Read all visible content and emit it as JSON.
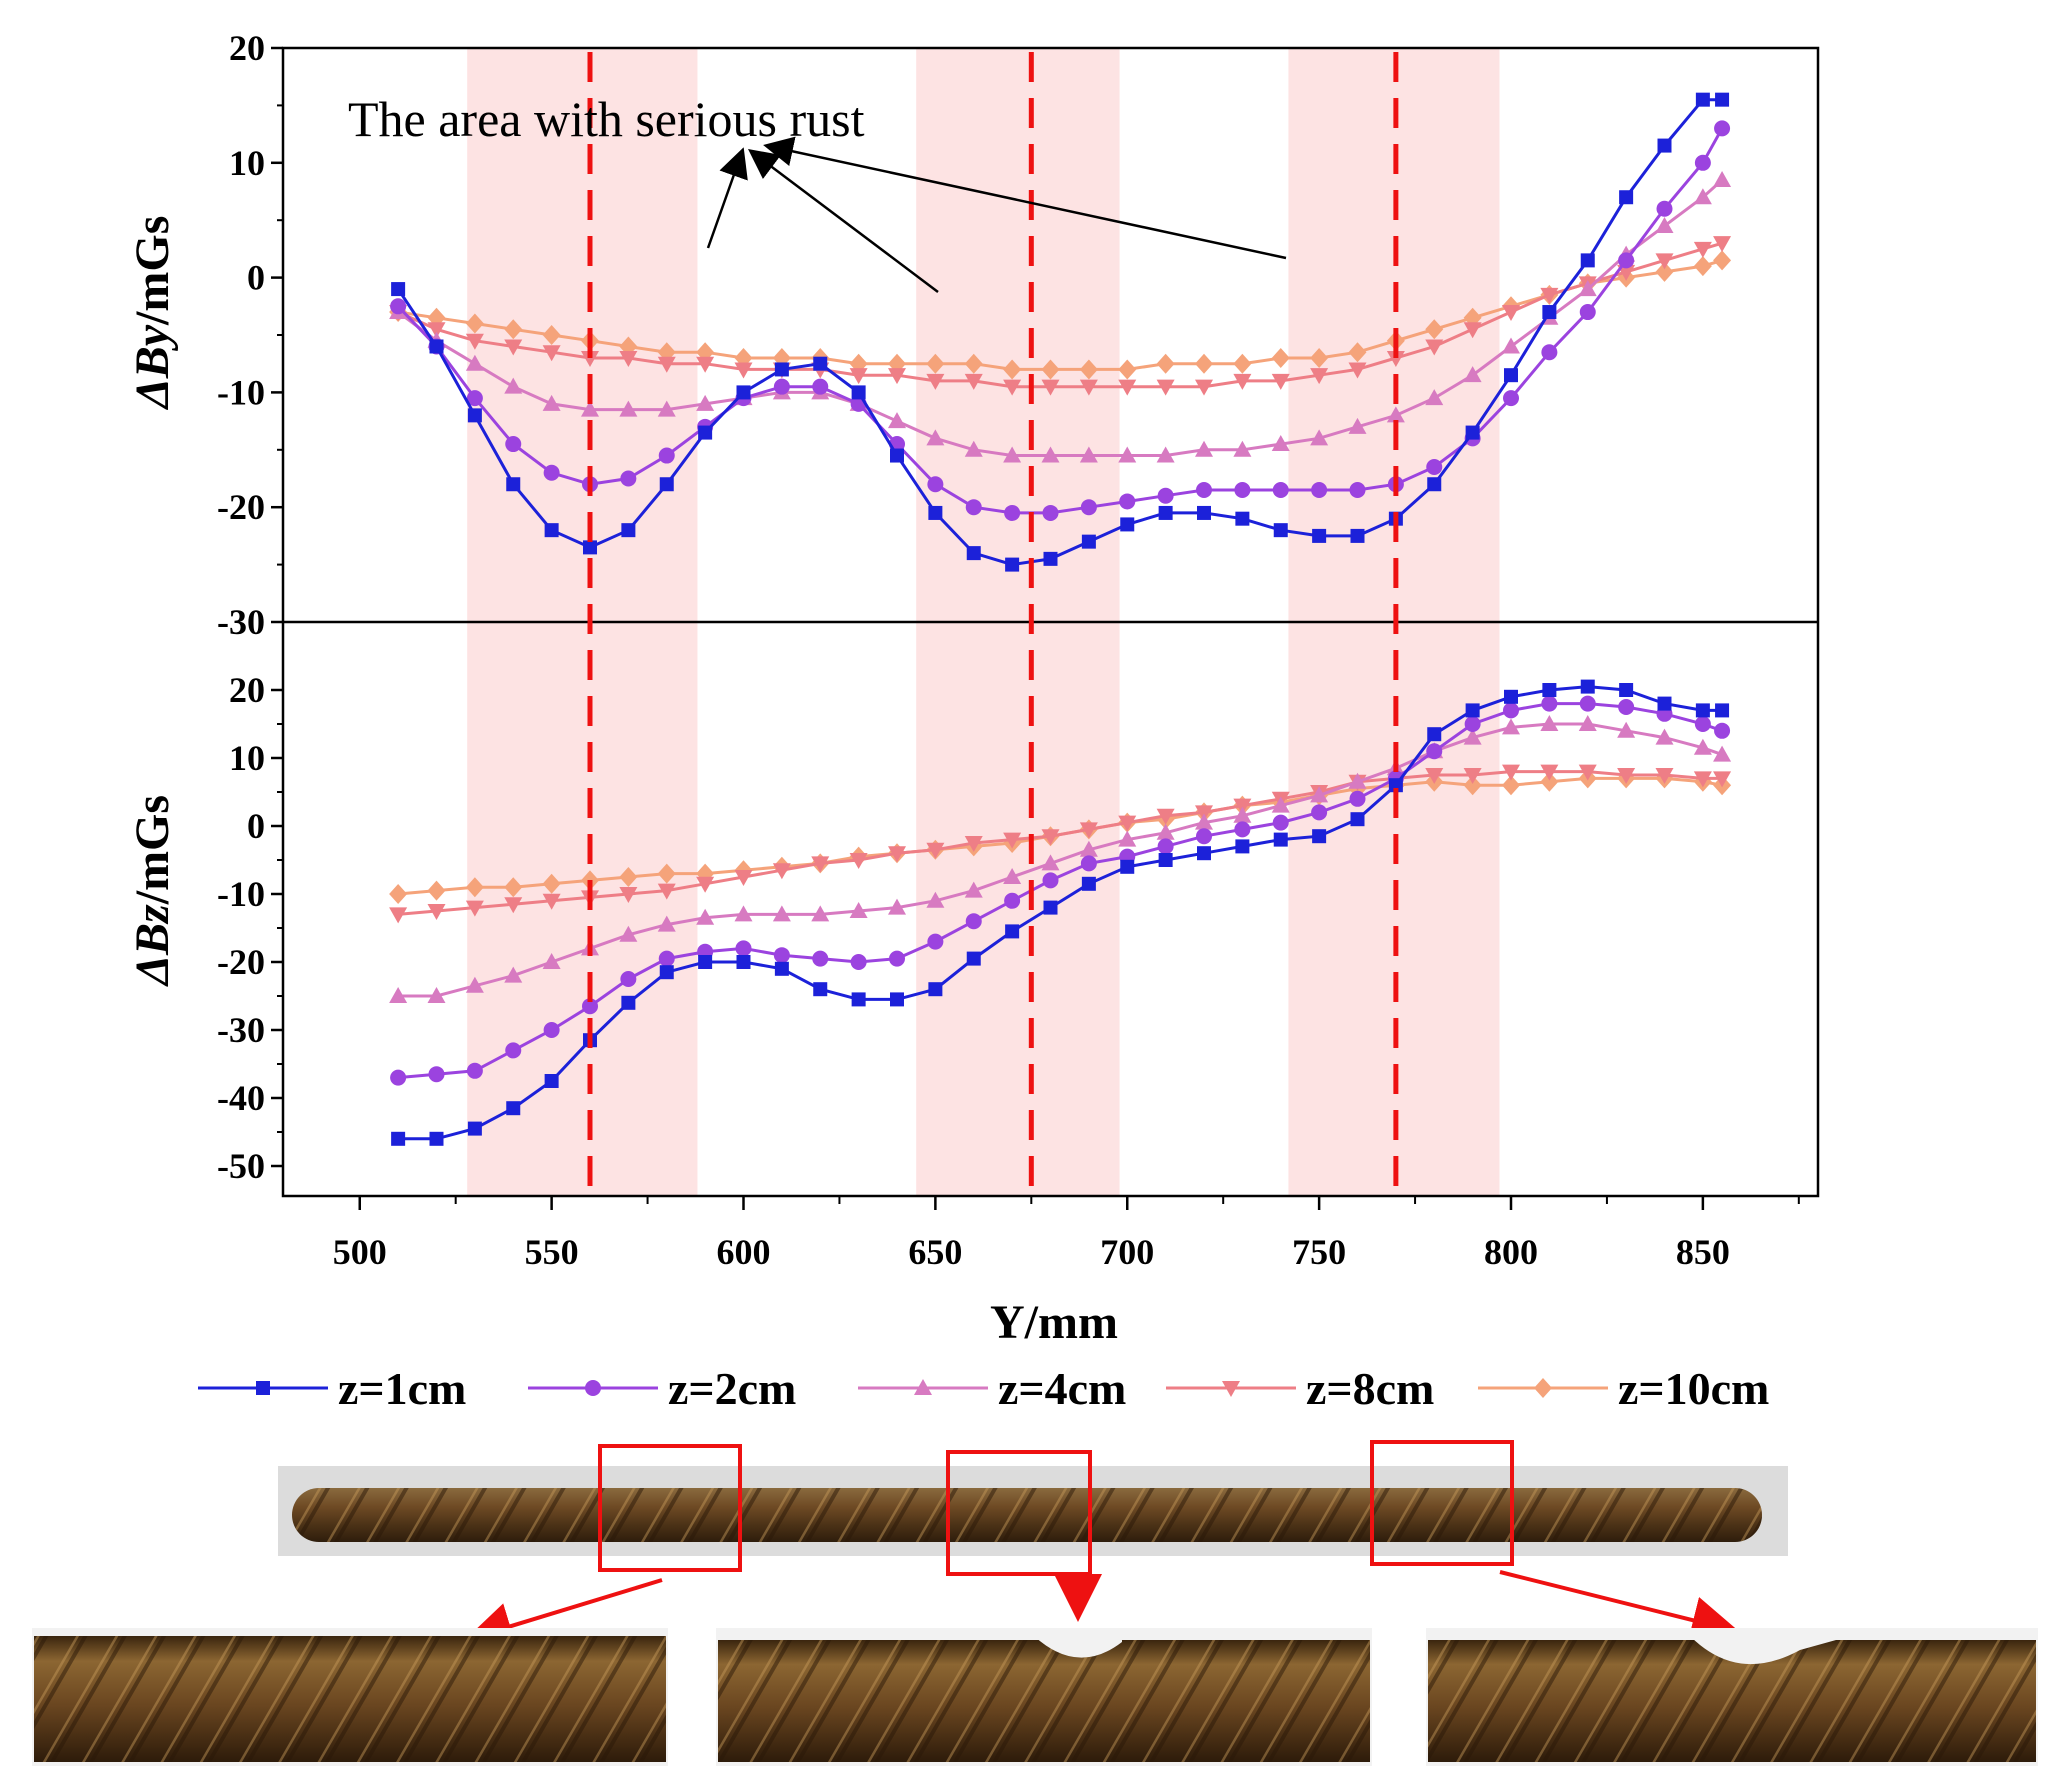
{
  "chart_data": {
    "type": "line",
    "annotation": "The area with serious rust",
    "xlabel": "Y/mm",
    "x_ticks": [
      "500",
      "550",
      "600",
      "650",
      "700",
      "750",
      "800",
      "850"
    ],
    "xlim": [
      480,
      880
    ],
    "highlight_bands": [
      [
        528,
        588
      ],
      [
        645,
        698
      ],
      [
        742,
        797
      ]
    ],
    "dashed_lines_x": [
      560,
      675,
      770
    ],
    "colors": {
      "band": "#fde3e3",
      "dashed": "#ee1111",
      "z1": "#1c21d9",
      "z2": "#9b43df",
      "z4": "#d77ac1",
      "z8": "#ee7e86",
      "z10": "#f5a37a"
    },
    "x": [
      510,
      520,
      530,
      540,
      550,
      560,
      570,
      580,
      590,
      600,
      610,
      620,
      630,
      640,
      650,
      660,
      670,
      680,
      690,
      700,
      710,
      720,
      730,
      740,
      750,
      760,
      770,
      780,
      790,
      800,
      810,
      820,
      830,
      840,
      850,
      855
    ],
    "panels": [
      {
        "name": "top",
        "ylabel_prefix": "ΔB",
        "ylabel_var": "y",
        "ylabel_suffix": "/mGs",
        "ylim": [
          -30,
          20
        ],
        "y_ticks": [
          "20",
          "10",
          "0",
          "-10",
          "-20",
          "-30"
        ],
        "y_tick_values": [
          20,
          10,
          0,
          -10,
          -20,
          -30
        ],
        "series": [
          {
            "name": "z=1cm",
            "marker": "square",
            "values": [
              -1,
              -6,
              -12,
              -18,
              -22,
              -23.5,
              -22,
              -18,
              -13.5,
              -10,
              -8,
              -7.5,
              -10,
              -15.5,
              -20.5,
              -24,
              -25,
              -24.5,
              -23,
              -21.5,
              -20.5,
              -20.5,
              -21,
              -22,
              -22.5,
              -22.5,
              -21,
              -18,
              -13.5,
              -8.5,
              -3,
              1.5,
              7,
              11.5,
              15.5,
              15.5
            ]
          },
          {
            "name": "z=2cm",
            "marker": "circle",
            "values": [
              -2.5,
              -6,
              -10.5,
              -14.5,
              -17,
              -18,
              -17.5,
              -15.5,
              -13,
              -10.5,
              -9.5,
              -9.5,
              -11,
              -14.5,
              -18,
              -20,
              -20.5,
              -20.5,
              -20,
              -19.5,
              -19,
              -18.5,
              -18.5,
              -18.5,
              -18.5,
              -18.5,
              -18,
              -16.5,
              -14,
              -10.5,
              -6.5,
              -3,
              1.5,
              6,
              10,
              13
            ]
          },
          {
            "name": "z=4cm",
            "marker": "triangle-up",
            "values": [
              -3,
              -5.5,
              -7.5,
              -9.5,
              -11,
              -11.5,
              -11.5,
              -11.5,
              -11,
              -10.5,
              -10,
              -10,
              -11,
              -12.5,
              -14,
              -15,
              -15.5,
              -15.5,
              -15.5,
              -15.5,
              -15.5,
              -15,
              -15,
              -14.5,
              -14,
              -13,
              -12,
              -10.5,
              -8.5,
              -6,
              -3.5,
              -1,
              2,
              4.5,
              7,
              8.5
            ]
          },
          {
            "name": "z=8cm",
            "marker": "triangle-down",
            "values": [
              -3,
              -4.5,
              -5.5,
              -6,
              -6.5,
              -7,
              -7,
              -7.5,
              -7.5,
              -8,
              -8,
              -8,
              -8.5,
              -8.5,
              -9,
              -9,
              -9.5,
              -9.5,
              -9.5,
              -9.5,
              -9.5,
              -9.5,
              -9,
              -9,
              -8.5,
              -8,
              -7,
              -6,
              -4.5,
              -3,
              -1.5,
              -0.5,
              0.5,
              1.5,
              2.5,
              3
            ]
          },
          {
            "name": "z=10cm",
            "marker": "diamond",
            "values": [
              -3,
              -3.5,
              -4,
              -4.5,
              -5,
              -5.5,
              -6,
              -6.5,
              -6.5,
              -7,
              -7,
              -7,
              -7.5,
              -7.5,
              -7.5,
              -7.5,
              -8,
              -8,
              -8,
              -8,
              -7.5,
              -7.5,
              -7.5,
              -7,
              -7,
              -6.5,
              -5.5,
              -4.5,
              -3.5,
              -2.5,
              -1.5,
              -0.5,
              0,
              0.5,
              1,
              1.5
            ]
          }
        ]
      },
      {
        "name": "bottom",
        "ylabel_prefix": "ΔB",
        "ylabel_var": "z",
        "ylabel_suffix": "/mGs",
        "ylim": [
          -55,
          30
        ],
        "y_ticks": [
          "20",
          "10",
          "0",
          "-10",
          "-20",
          "-30",
          "-40",
          "-50"
        ],
        "y_tick_values": [
          20,
          10,
          0,
          -10,
          -20,
          -30,
          -40,
          -50
        ],
        "series": [
          {
            "name": "z=1cm",
            "marker": "square",
            "values": [
              -46,
              -46,
              -44.5,
              -41.5,
              -37.5,
              -31.5,
              -26,
              -21.5,
              -20,
              -20,
              -21,
              -24,
              -25.5,
              -25.5,
              -24,
              -19.5,
              -15.5,
              -12,
              -8.5,
              -6,
              -5,
              -4,
              -3,
              -2,
              -1.5,
              1,
              6,
              13.5,
              17,
              19,
              20,
              20.5,
              20,
              18,
              17,
              17
            ]
          },
          {
            "name": "z=2cm",
            "marker": "circle",
            "values": [
              -37,
              -36.5,
              -36,
              -33,
              -30,
              -26.5,
              -22.5,
              -19.5,
              -18.5,
              -18,
              -19,
              -19.5,
              -20,
              -19.5,
              -17,
              -14,
              -11,
              -8,
              -5.5,
              -4.5,
              -3,
              -1.5,
              -0.5,
              0.5,
              2,
              4,
              7,
              11,
              15,
              17,
              18,
              18,
              17.5,
              16.5,
              15,
              14
            ]
          },
          {
            "name": "z=4cm",
            "marker": "triangle-up",
            "values": [
              -25,
              -25,
              -23.5,
              -22,
              -20,
              -18,
              -16,
              -14.5,
              -13.5,
              -13,
              -13,
              -13,
              -12.5,
              -12,
              -11,
              -9.5,
              -7.5,
              -5.5,
              -3.5,
              -2,
              -1,
              0.5,
              1.5,
              3,
              4.5,
              6.5,
              8.5,
              11,
              13,
              14.5,
              15,
              15,
              14,
              13,
              11.5,
              10.5
            ]
          },
          {
            "name": "z=8cm",
            "marker": "triangle-down",
            "values": [
              -13,
              -12.5,
              -12,
              -11.5,
              -11,
              -10.5,
              -10,
              -9.5,
              -8.5,
              -7.5,
              -6.5,
              -5.5,
              -5,
              -4,
              -3.5,
              -2.5,
              -2,
              -1.5,
              -0.5,
              0.5,
              1.5,
              2,
              3,
              4,
              5,
              6.5,
              7,
              7.5,
              7.5,
              8,
              8,
              8,
              7.5,
              7.5,
              7,
              7
            ]
          },
          {
            "name": "z=10cm",
            "marker": "diamond",
            "values": [
              -10,
              -9.5,
              -9,
              -9,
              -8.5,
              -8,
              -7.5,
              -7,
              -7,
              -6.5,
              -6,
              -5.5,
              -4.5,
              -4,
              -3.5,
              -3,
              -2.5,
              -1.5,
              -0.5,
              0.5,
              1,
              2,
              3,
              3.5,
              4.5,
              5.5,
              6,
              6.5,
              6,
              6,
              6.5,
              7,
              7,
              7,
              6.5,
              6
            ]
          }
        ]
      }
    ],
    "legend": {
      "placement": "bottom",
      "entries": [
        "z=1cm",
        "z=2cm",
        "z=4cm",
        "z=8cm",
        "z=10cm"
      ]
    }
  }
}
